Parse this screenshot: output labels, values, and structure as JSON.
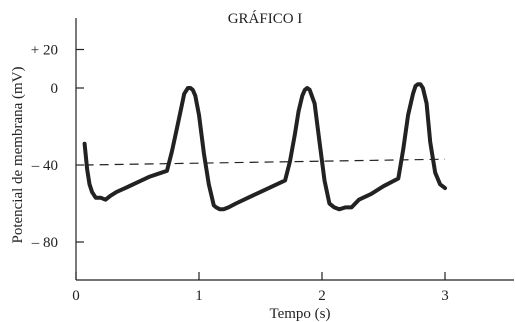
{
  "chart_data": {
    "type": "line",
    "title": "GRÁFICO I",
    "xlabel": "Tempo (s)",
    "ylabel": "Potencial de membrana (mV)",
    "xlim": [
      0,
      3.55
    ],
    "ylim": [
      -100,
      30
    ],
    "xticks": [
      0,
      1,
      2,
      3
    ],
    "xtick_labels": [
      "0",
      "1",
      "2",
      "3"
    ],
    "yticks": [
      20,
      0,
      -40,
      -80
    ],
    "ytick_labels": [
      "+ 20",
      "0",
      "– 40",
      "– 80"
    ],
    "grid": false,
    "legend": "none",
    "series": [
      {
        "style": "solid",
        "color": "#222222",
        "x": [
          0.07,
          0.09,
          0.11,
          0.13,
          0.16,
          0.2,
          0.24,
          0.28,
          0.33,
          0.4,
          0.5,
          0.6,
          0.74,
          0.78,
          0.82,
          0.86,
          0.88,
          0.91,
          0.93,
          0.95,
          0.97,
          1.0,
          1.04,
          1.08,
          1.12,
          1.14,
          1.17,
          1.2,
          1.24,
          1.3,
          1.4,
          1.5,
          1.6,
          1.7,
          1.74,
          1.78,
          1.81,
          1.84,
          1.86,
          1.88,
          1.9,
          1.94,
          1.98,
          2.02,
          2.06,
          2.1,
          2.14,
          2.19,
          2.24,
          2.3,
          2.4,
          2.5,
          2.62,
          2.66,
          2.7,
          2.74,
          2.76,
          2.78,
          2.8,
          2.82,
          2.85,
          2.88,
          2.92,
          2.96,
          3.0
        ],
        "y": [
          -29,
          -42,
          -50,
          -54,
          -57,
          -57,
          -58,
          -56,
          -54,
          -52,
          -49,
          -46,
          -43,
          -33,
          -21,
          -9,
          -3,
          0,
          0,
          -1,
          -4,
          -14,
          -34,
          -50,
          -61,
          -62,
          -63,
          -63,
          -62,
          -60,
          -57,
          -54,
          -51,
          -48,
          -38,
          -24,
          -12,
          -4,
          -1,
          0,
          -1,
          -8,
          -28,
          -48,
          -60,
          -62,
          -63,
          -62,
          -62,
          -58,
          -55,
          -51,
          -47,
          -32,
          -14,
          -3,
          1,
          2,
          2,
          0,
          -8,
          -28,
          -44,
          -50,
          -52
        ]
      },
      {
        "style": "dashed",
        "color": "#222222",
        "x": [
          0.07,
          3.0
        ],
        "y": [
          -40,
          -37
        ]
      }
    ]
  }
}
